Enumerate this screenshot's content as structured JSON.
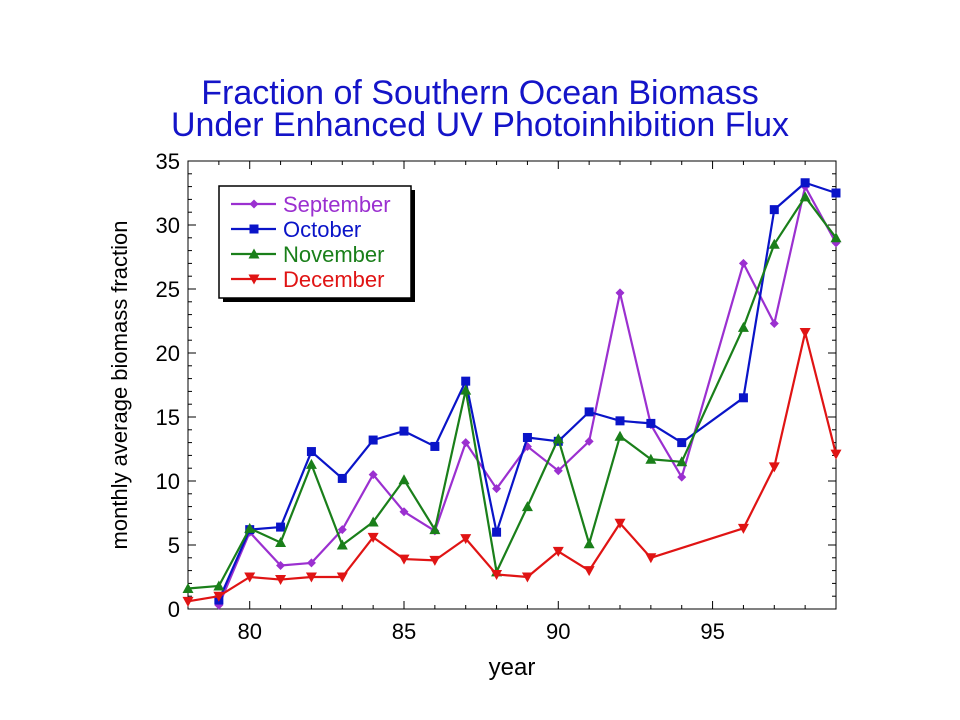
{
  "chart_data": {
    "type": "line",
    "title": "Fraction of Southern Ocean Biomass",
    "subtitle": "Under Enhanced UV Photoinhibition Flux",
    "xlabel": "year",
    "ylabel": "monthly average biomass fraction",
    "xlim": [
      78,
      99
    ],
    "ylim": [
      0,
      35
    ],
    "xticks": [
      80,
      85,
      90,
      95
    ],
    "yticks": [
      0,
      5,
      10,
      15,
      20,
      25,
      30,
      35
    ],
    "grid": false,
    "legend_position": "top-left",
    "series": [
      {
        "name": "September",
        "color": "#9b30d0",
        "marker": "diamond",
        "points": [
          [
            79,
            0.3
          ],
          [
            80,
            6.0
          ],
          [
            81,
            3.4
          ],
          [
            82,
            3.6
          ],
          [
            83,
            6.2
          ],
          [
            84,
            10.5
          ],
          [
            85,
            7.6
          ],
          [
            86,
            6.1
          ],
          [
            87,
            13.0
          ],
          [
            88,
            9.4
          ],
          [
            89,
            12.7
          ],
          [
            90,
            10.8
          ],
          [
            91,
            13.1
          ],
          [
            92,
            24.7
          ],
          [
            93,
            14.4
          ],
          [
            94,
            10.3
          ],
          [
            96,
            27.0
          ],
          [
            97,
            22.3
          ],
          [
            98,
            33.0
          ],
          [
            99,
            28.6
          ]
        ]
      },
      {
        "name": "October",
        "color": "#0a14c8",
        "marker": "square",
        "points": [
          [
            79,
            0.7
          ],
          [
            80,
            6.2
          ],
          [
            81,
            6.4
          ],
          [
            82,
            12.3
          ],
          [
            83,
            10.2
          ],
          [
            84,
            13.2
          ],
          [
            85,
            13.9
          ],
          [
            86,
            12.7
          ],
          [
            87,
            17.8
          ],
          [
            88,
            6.0
          ],
          [
            89,
            13.4
          ],
          [
            90,
            13.1
          ],
          [
            91,
            15.4
          ],
          [
            92,
            14.7
          ],
          [
            93,
            14.5
          ],
          [
            94,
            13.0
          ],
          [
            96,
            16.5
          ],
          [
            97,
            31.2
          ],
          [
            98,
            33.3
          ],
          [
            99,
            32.5
          ]
        ]
      },
      {
        "name": "November",
        "color": "#1a7f1a",
        "marker": "triangle-up",
        "points": [
          [
            78,
            1.6
          ],
          [
            79,
            1.8
          ],
          [
            80,
            6.3
          ],
          [
            81,
            5.2
          ],
          [
            82,
            11.3
          ],
          [
            83,
            5.0
          ],
          [
            84,
            6.8
          ],
          [
            85,
            10.1
          ],
          [
            86,
            6.2
          ],
          [
            87,
            17.1
          ],
          [
            88,
            2.9
          ],
          [
            89,
            8.0
          ],
          [
            90,
            13.3
          ],
          [
            91,
            5.1
          ],
          [
            92,
            13.5
          ],
          [
            93,
            11.7
          ],
          [
            94,
            11.5
          ],
          [
            96,
            22.0
          ],
          [
            97,
            28.5
          ],
          [
            98,
            32.2
          ],
          [
            99,
            29.0
          ]
        ]
      },
      {
        "name": "December",
        "color": "#e01414",
        "marker": "triangle-down",
        "points": [
          [
            78,
            0.6
          ],
          [
            79,
            1.0
          ],
          [
            80,
            2.5
          ],
          [
            81,
            2.3
          ],
          [
            82,
            2.5
          ],
          [
            83,
            2.5
          ],
          [
            84,
            5.6
          ],
          [
            85,
            3.9
          ],
          [
            86,
            3.8
          ],
          [
            87,
            5.5
          ],
          [
            88,
            2.7
          ],
          [
            89,
            2.5
          ],
          [
            90,
            4.5
          ],
          [
            91,
            3.0
          ],
          [
            92,
            6.7
          ],
          [
            93,
            4.0
          ],
          [
            96,
            6.3
          ],
          [
            97,
            11.1
          ],
          [
            98,
            21.6
          ],
          [
            99,
            12.1
          ]
        ]
      }
    ]
  }
}
